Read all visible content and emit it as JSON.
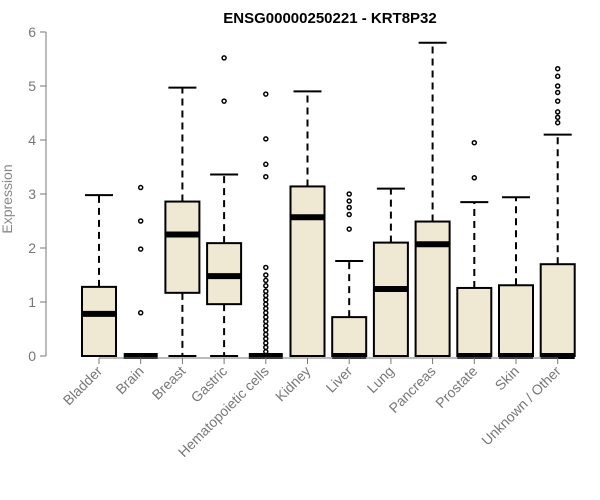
{
  "chart_data": {
    "type": "box",
    "title": "ENSG00000250221 - KRT8P32",
    "ylabel": "Expression",
    "xlabel": "",
    "ylim": [
      0,
      6
    ],
    "yticks": [
      "0",
      "1",
      "2",
      "3",
      "4",
      "5",
      "6"
    ],
    "grid": false,
    "box_fill": "#efe8d2",
    "line_color": "#000000",
    "categories": [
      "Bladder",
      "Brain",
      "Breast",
      "Gastric",
      "Hematopoietic cells",
      "Kidney",
      "Liver",
      "Lung",
      "Pancreas",
      "Prostate",
      "Skin",
      "Unknown / Other"
    ],
    "series": [
      {
        "category": "Bladder",
        "min": 0,
        "q1": 0,
        "median": 0.78,
        "q3": 1.28,
        "max": 2.98,
        "outliers": []
      },
      {
        "category": "Brain",
        "min": 0,
        "q1": 0,
        "median": 0,
        "q3": 0,
        "max": 0,
        "outliers": [
          0.8,
          1.98,
          2.5,
          3.12
        ]
      },
      {
        "category": "Breast",
        "min": 0,
        "q1": 1.17,
        "median": 2.25,
        "q3": 2.86,
        "max": 4.97,
        "outliers": []
      },
      {
        "category": "Gastric",
        "min": 0,
        "q1": 0.96,
        "median": 1.48,
        "q3": 2.09,
        "max": 3.36,
        "outliers": [
          4.72,
          5.52
        ]
      },
      {
        "category": "Hematopoietic cells",
        "min": 0,
        "q1": 0,
        "median": 0,
        "q3": 0,
        "max": 0,
        "outliers": [
          0.08,
          0.16,
          0.24,
          0.32,
          0.4,
          0.48,
          0.56,
          0.64,
          0.72,
          0.8,
          0.88,
          0.96,
          1.04,
          1.12,
          1.2,
          1.3,
          1.4,
          1.5,
          1.64,
          3.32,
          3.55,
          4.02,
          4.85
        ]
      },
      {
        "category": "Kidney",
        "min": 0,
        "q1": 0,
        "median": 2.57,
        "q3": 3.14,
        "max": 4.9,
        "outliers": []
      },
      {
        "category": "Liver",
        "min": 0,
        "q1": 0,
        "median": 0,
        "q3": 0.72,
        "max": 1.76,
        "outliers": [
          2.35,
          2.62,
          2.75,
          2.87,
          3.0
        ]
      },
      {
        "category": "Lung",
        "min": 0,
        "q1": 0,
        "median": 1.24,
        "q3": 2.1,
        "max": 3.1,
        "outliers": []
      },
      {
        "category": "Pancreas",
        "min": 0,
        "q1": 0,
        "median": 2.07,
        "q3": 2.49,
        "max": 5.8,
        "outliers": []
      },
      {
        "category": "Prostate",
        "min": 0,
        "q1": 0,
        "median": 0,
        "q3": 1.26,
        "max": 2.85,
        "outliers": [
          3.3,
          3.95
        ]
      },
      {
        "category": "Skin",
        "min": 0,
        "q1": 0,
        "median": 0,
        "q3": 1.31,
        "max": 2.94,
        "outliers": []
      },
      {
        "category": "Unknown / Other",
        "min": 0,
        "q1": 0,
        "median": 0,
        "q3": 1.7,
        "max": 4.1,
        "outliers": [
          4.32,
          4.42,
          4.52,
          4.72,
          4.88,
          5.0,
          5.18,
          5.32
        ]
      }
    ]
  }
}
